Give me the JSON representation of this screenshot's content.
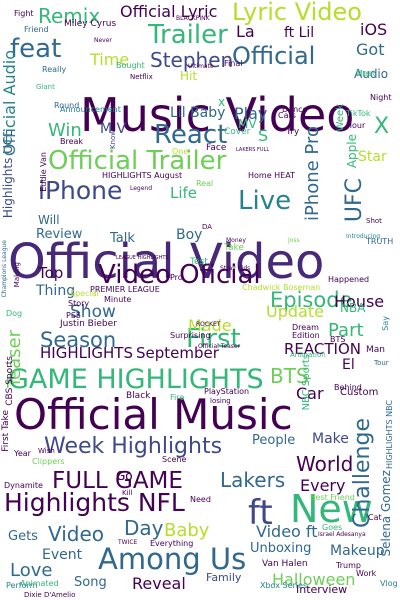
{
  "colors": {
    "background": "#ffffff",
    "palette": [
      "#440154",
      "#482878",
      "#3e4989",
      "#31688e",
      "#26828e",
      "#1f9e89",
      "#35b779",
      "#6ece58",
      "#b5de2b",
      "#fde725"
    ]
  },
  "words": [
    "Official Video",
    "Official Music",
    "Music Video",
    "GAME HIGHLIGHTS",
    "Official Trailer",
    "Highlights NFL",
    "Video Oficial",
    "Week Highlights",
    "FULL GAME",
    "Among Us",
    "New",
    "ft",
    "Lyric Video",
    "Trailer",
    "Official",
    "feat",
    "React",
    "iPhone",
    "Live",
    "Episode",
    "First",
    "Season",
    "HIGHLIGHTS",
    "September",
    "REACTION",
    "World",
    "Lakers",
    "Challenge",
    "Video",
    "Day",
    "Baby",
    "Official Lyric",
    "Remix",
    "Stephen",
    "Time",
    "Audio",
    "Made",
    "Update",
    "Show",
    "Top",
    "Thing",
    "Part",
    "Teaser",
    "House",
    "BTS",
    "UFC",
    "iPhone Pro",
    "Highlights UCL",
    "Official Audio",
    "Every",
    "Car",
    "Make",
    "People",
    "Love",
    "Event",
    "Song",
    "Reveal",
    "Halloween",
    "Family",
    "Makeup",
    "Unboxing",
    "Interview",
    "Selena Gomez",
    "Video ft",
    "Gets",
    "Got",
    "Play",
    "Lil Baby",
    "Life",
    "Boy",
    "Review",
    "Talk",
    "Will",
    "Star",
    "Apple",
    "Week",
    "iOS",
    "Fight",
    "Friend",
    "Miley Cyrus",
    "Really",
    "Round",
    "Hit",
    "Bought",
    "Netflix",
    "Ultimate",
    "Final",
    "Giant",
    "Announcement",
    "Break",
    "Eddie Van",
    "Know",
    "Face",
    "Cover",
    "Dance",
    "Night",
    "Meet",
    "Home HEAT",
    "HIGHLIGHTS August",
    "Legend",
    "One",
    "Real",
    "Money",
    "Take",
    "Stray Kids",
    "Introducing",
    "TRUTH",
    "Shot",
    "Test",
    "LEAGUE HIGHLIGHTS",
    "Special",
    "Story",
    "PS5",
    "PREMIER LEAGUE",
    "Minute",
    "Justin Bieber",
    "Dog",
    "Surprising",
    "ROCKET",
    "Chadwick Boseman",
    "Happened",
    "NBA",
    "Dream",
    "Edition",
    "BTS",
    "Say",
    "Man",
    "Tour",
    "Animation",
    "NBC Sports",
    "Behind",
    "Custom",
    "Black",
    "Fire",
    "PlayStation",
    "losing",
    "Clippers",
    "Kill",
    "Need",
    "Scene",
    "Best Friend",
    "Goes",
    "Israel Adesanya",
    "TWICE",
    "Everything",
    "Van Halen",
    "Trump",
    "Xbox Series",
    "Work",
    "Cat",
    "Vlog",
    "Perform",
    "Animated",
    "Dixie D'Amelio",
    "Dynamite",
    "Year",
    "First Take",
    "HIGHLIGHTS NBC",
    "Champions League",
    "Making",
    "Go",
    "TikTok",
    "Hour",
    "Try",
    "LAKERS FULL",
    "Official Teaser",
    "DA",
    "Joss",
    "CBS Sports",
    "El",
    "La",
    "ft Lil",
    "Go",
    "MV",
    "X",
    "M V",
    "Win",
    "Cars",
    "S",
    "BLACKPINK",
    "Never",
    "Wish",
    "Pro",
    "x"
  ]
}
